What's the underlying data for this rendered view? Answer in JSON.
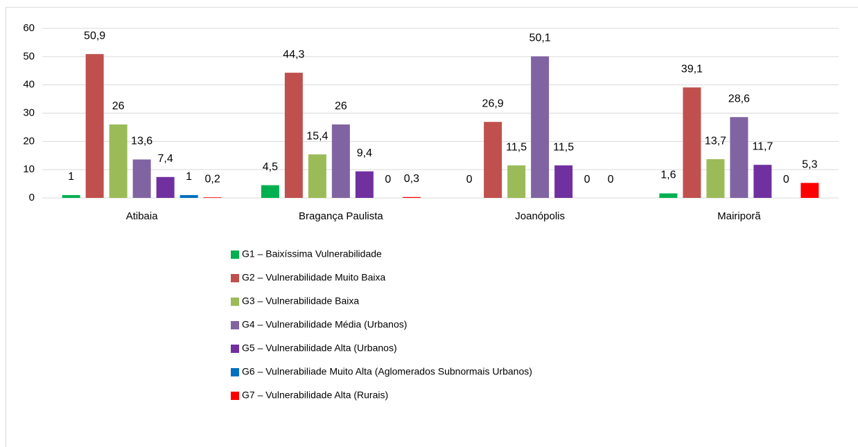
{
  "chart_data": {
    "type": "bar",
    "categories": [
      "Atibaia",
      "Bragança Paulista",
      "Joanópolis",
      "Mairiporã"
    ],
    "series": [
      {
        "name": "G1 – Baixíssima Vulnerabilidade",
        "color": "#00b050",
        "values": [
          1,
          4.5,
          0,
          1.6
        ],
        "value_labels": [
          "1",
          "4,5",
          "0",
          "1,6"
        ]
      },
      {
        "name": "G2 – Vulnerabilidade Muito Baixa",
        "color": "#c0504d",
        "values": [
          50.9,
          44.3,
          26.9,
          39.1
        ],
        "value_labels": [
          "50,9",
          "44,3",
          "26,9",
          "39,1"
        ]
      },
      {
        "name": "G3 – Vulnerabilidade Baixa",
        "color": "#9bbb59",
        "values": [
          26,
          15.4,
          11.5,
          13.7
        ],
        "value_labels": [
          "26",
          "15,4",
          "11,5",
          "13,7"
        ]
      },
      {
        "name": "G4 – Vulnerabilidade Média (Urbanos)",
        "color": "#8064a2",
        "values": [
          13.6,
          26,
          50.1,
          28.6
        ],
        "value_labels": [
          "13,6",
          "26",
          "50,1",
          "28,6"
        ]
      },
      {
        "name": "G5 – Vulnerabilidade Alta (Urbanos)",
        "color": "#7030a0",
        "values": [
          7.4,
          9.4,
          11.5,
          11.7
        ],
        "value_labels": [
          "7,4",
          "9,4",
          "11,5",
          "11,7"
        ]
      },
      {
        "name": "G6 – Vulnerabiliade Muito Alta (Aglomerados Subnormais Urbanos)",
        "color": "#0070c0",
        "values": [
          1,
          0,
          0,
          0
        ],
        "value_labels": [
          "1",
          "0",
          "0",
          "0"
        ]
      },
      {
        "name": "G7 – Vulnerabilidade Alta (Rurais)",
        "color": "#ff0000",
        "values": [
          0.2,
          0.3,
          0,
          5.3
        ],
        "value_labels": [
          "0,2",
          "0,3",
          "0",
          "5,3"
        ]
      }
    ],
    "ylim": [
      0,
      60
    ],
    "yticks": [
      0,
      10,
      20,
      30,
      40,
      50,
      60
    ],
    "grid": true,
    "legend": "bottom"
  }
}
